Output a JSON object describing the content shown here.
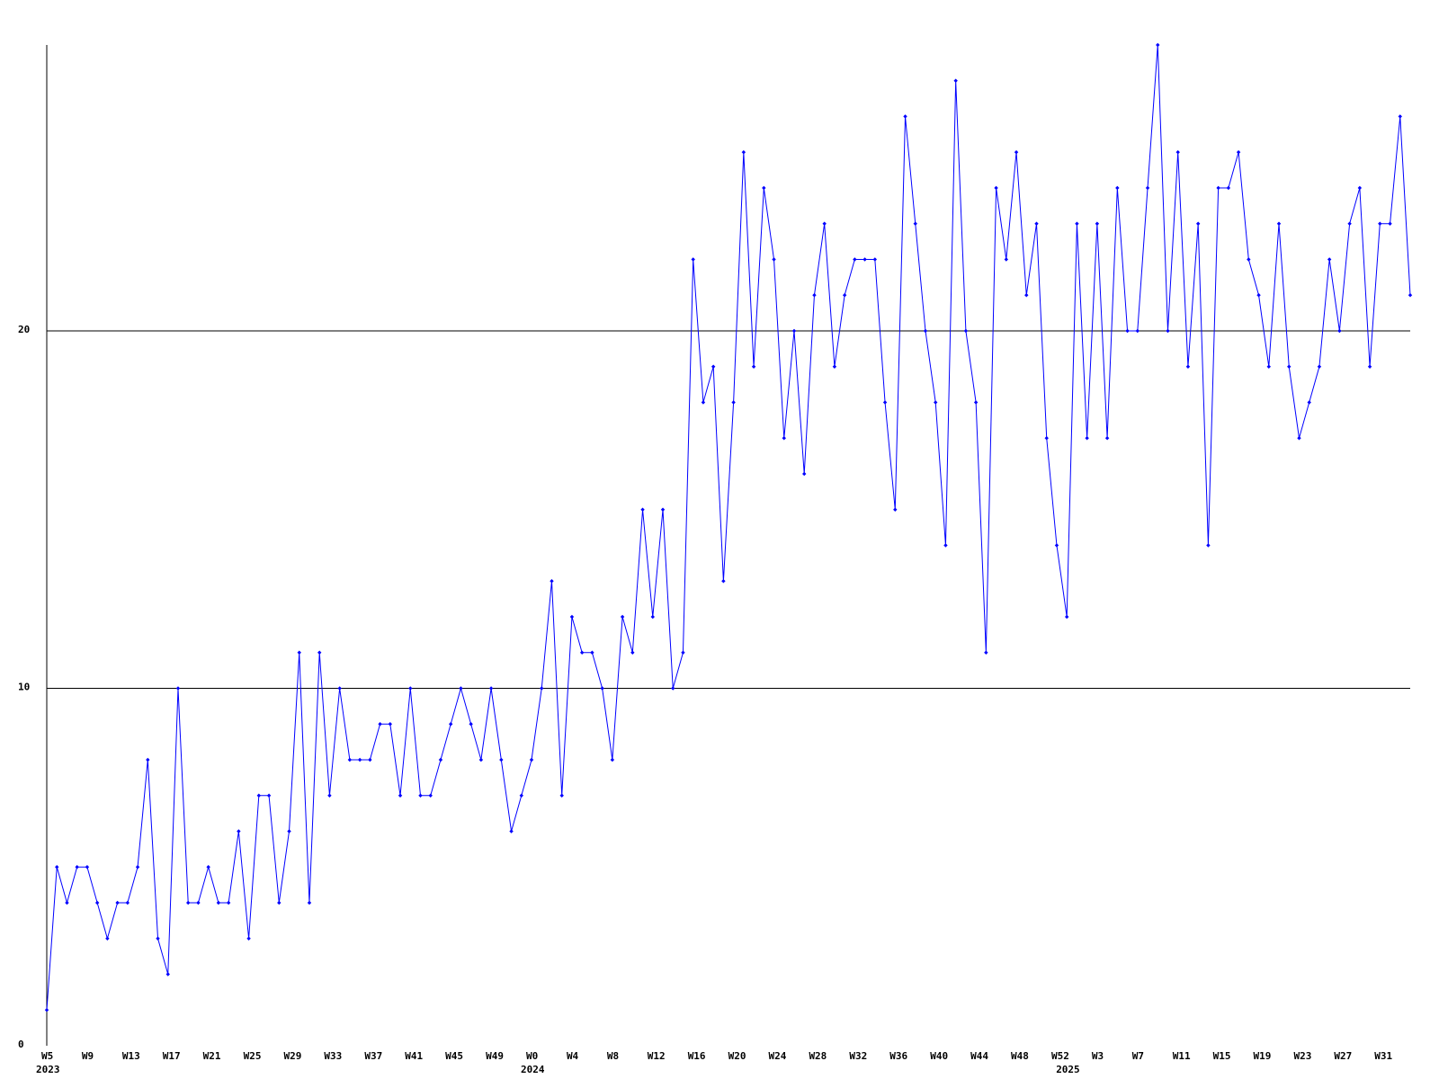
{
  "chart_data": {
    "type": "line",
    "categories": [
      "W5",
      null,
      null,
      null,
      "W9",
      null,
      null,
      null,
      "W13",
      null,
      null,
      null,
      "W17",
      null,
      null,
      null,
      "W21",
      null,
      null,
      null,
      "W25",
      null,
      null,
      null,
      "W29",
      null,
      null,
      null,
      "W33",
      null,
      null,
      null,
      "W37",
      null,
      null,
      null,
      "W41",
      null,
      null,
      null,
      "W45",
      null,
      null,
      null,
      "W49",
      null,
      null,
      null,
      "W0",
      null,
      null,
      null,
      "W4",
      null,
      null,
      null,
      "W8",
      null,
      null,
      null,
      "W12",
      null,
      null,
      null,
      "W16",
      null,
      null,
      null,
      "W20",
      null,
      null,
      null,
      "W24",
      null,
      null,
      null,
      "W28",
      null,
      null,
      null,
      "W32",
      null,
      null,
      null,
      "W36",
      null,
      null,
      null,
      "W40",
      null,
      null,
      null,
      "W44",
      null,
      null,
      null,
      "W48",
      null,
      null,
      null,
      "W52",
      null,
      null,
      null,
      "W3",
      null,
      null,
      null,
      "W7",
      null,
      null,
      null,
      "W11",
      null,
      null,
      null,
      "W15",
      null,
      null,
      null,
      "W19",
      null,
      null,
      null,
      "W23",
      null,
      null,
      null,
      "W27",
      null,
      null,
      null,
      "W31",
      null,
      null,
      null
    ],
    "category_years": [
      "2023",
      null,
      null,
      null,
      null,
      null,
      null,
      null,
      null,
      null,
      null,
      null,
      null,
      null,
      null,
      null,
      null,
      null,
      null,
      null,
      null,
      null,
      null,
      null,
      null,
      null,
      null,
      null,
      null,
      null,
      null,
      null,
      null,
      null,
      null,
      null,
      null,
      null,
      null,
      null,
      null,
      null,
      null,
      null,
      null,
      null,
      null,
      null,
      "2024",
      null,
      null,
      null,
      null,
      null,
      null,
      null,
      null,
      null,
      null,
      null,
      null,
      null,
      null,
      null,
      null,
      null,
      null,
      null,
      null,
      null,
      null,
      null,
      null,
      null,
      null,
      null,
      null,
      null,
      null,
      null,
      null,
      null,
      null,
      null,
      null,
      null,
      null,
      null,
      null,
      null,
      null,
      null,
      null,
      null,
      null,
      null,
      null,
      null,
      null,
      null,
      null,
      "2025",
      null,
      null,
      null,
      null,
      null,
      null,
      null,
      null,
      null,
      null,
      null,
      null,
      null,
      null,
      null,
      null,
      null,
      null,
      null,
      null,
      null,
      null,
      null,
      null,
      null,
      null,
      null,
      null,
      null,
      null,
      null,
      null,
      null,
      null
    ],
    "series": [
      {
        "color": "#0000ff",
        "values": [
          1,
          5,
          4,
          5,
          5,
          4,
          3,
          4,
          4,
          5,
          8,
          3,
          2,
          10,
          4,
          4,
          5,
          4,
          4,
          6,
          3,
          7,
          7,
          4,
          6,
          11,
          4,
          11,
          7,
          10,
          8,
          8,
          8,
          9,
          9,
          7,
          10,
          7,
          7,
          8,
          9,
          10,
          9,
          8,
          10,
          8,
          6,
          7,
          8,
          10,
          13,
          7,
          12,
          11,
          11,
          10,
          8,
          12,
          11,
          15,
          12,
          15,
          10,
          11,
          22,
          18,
          19,
          13,
          18,
          25,
          19,
          24,
          22,
          17,
          20,
          16,
          21,
          23,
          19,
          21,
          22,
          22,
          22,
          18,
          15,
          26,
          23,
          20,
          18,
          14,
          27,
          20,
          18,
          11,
          24,
          22,
          25,
          21,
          23,
          17,
          14,
          12,
          23,
          17,
          23,
          17,
          24,
          20,
          20,
          24,
          28,
          20,
          25,
          19,
          23,
          14,
          24,
          24,
          25,
          22,
          21,
          19,
          23,
          19,
          17,
          18,
          19,
          22,
          20,
          23,
          24,
          19,
          23,
          23,
          26,
          21
        ]
      }
    ],
    "ylim": [
      0,
      28
    ],
    "yticks": [
      0,
      10,
      20
    ],
    "grid": true
  }
}
